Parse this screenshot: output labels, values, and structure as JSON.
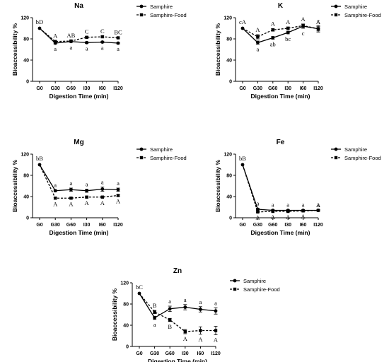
{
  "chart_data": [
    {
      "type": "line",
      "title": "Na",
      "xlabel": "Digestion Time (min)",
      "ylabel": "Bioaccessibility %",
      "categories": [
        "G0",
        "G30",
        "G60",
        "I30",
        "I60",
        "I120"
      ],
      "ylim": [
        0,
        120
      ],
      "yticks": [
        "0",
        "40",
        "80",
        "120"
      ],
      "legend": "right",
      "series": [
        {
          "name": "Samphire",
          "style": "solid",
          "values": [
            100,
            72,
            75,
            73,
            74,
            72
          ],
          "err": [
            0,
            1.5,
            1.5,
            1.5,
            1.5,
            1.5
          ],
          "labels": [
            "bD",
            "a",
            "a",
            "a",
            "a",
            "a"
          ]
        },
        {
          "name": "Samphire-Food",
          "style": "dashed",
          "values": [
            100,
            75,
            76,
            83,
            84,
            82
          ],
          "err": [
            0,
            1.5,
            1.5,
            1.5,
            1.5,
            1.5
          ],
          "labels": [
            "",
            "A",
            "AB",
            "C",
            "C",
            "BC"
          ]
        }
      ]
    },
    {
      "type": "line",
      "title": "K",
      "xlabel": "Digestion Time (min)",
      "ylabel": "Bioaccessibility %",
      "categories": [
        "G0",
        "G30",
        "G60",
        "I30",
        "I60",
        "I120"
      ],
      "ylim": [
        0,
        120
      ],
      "yticks": [
        "0",
        "40",
        "80",
        "120"
      ],
      "legend": "right",
      "series": [
        {
          "name": "Samphire",
          "style": "solid",
          "values": [
            100,
            73,
            82,
            92,
            104,
            99
          ],
          "err": [
            0,
            3,
            2.5,
            2.5,
            4,
            6
          ],
          "labels": [
            "cA",
            "a",
            "ab",
            "bc",
            "c",
            "c"
          ]
        },
        {
          "name": "Samphire-Food",
          "style": "dashed",
          "values": [
            100,
            84,
            97,
            100,
            105,
            99
          ],
          "err": [
            0,
            4,
            2.5,
            2.5,
            3,
            4
          ],
          "labels": [
            "",
            "A",
            "A",
            "A",
            "A",
            "A"
          ]
        }
      ]
    },
    {
      "type": "line",
      "title": "Mg",
      "xlabel": "Digestion Time (min)",
      "ylabel": "Bioaccessibility %",
      "categories": [
        "G0",
        "G30",
        "G60",
        "I30",
        "I60",
        "I120"
      ],
      "ylim": [
        0,
        120
      ],
      "yticks": [
        "0",
        "40",
        "80",
        "120"
      ],
      "legend": "right",
      "series": [
        {
          "name": "Samphire",
          "style": "solid",
          "values": [
            100,
            51,
            53,
            51,
            54,
            53
          ],
          "err": [
            0,
            2,
            3,
            3,
            4,
            3
          ],
          "labels": [
            "bB",
            "a",
            "a",
            "a",
            "a",
            "a"
          ]
        },
        {
          "name": "Samphire-Food",
          "style": "dashed",
          "values": [
            100,
            37,
            37,
            39,
            39,
            42
          ],
          "err": [
            0,
            1.5,
            1.5,
            1.5,
            1.5,
            1.5
          ],
          "labels": [
            "",
            "A",
            "A",
            "A",
            "A",
            "A"
          ]
        }
      ]
    },
    {
      "type": "line",
      "title": "Fe",
      "xlabel": "Digestion Time (min)",
      "ylabel": "Bioaccessibility %",
      "categories": [
        "G0",
        "G30",
        "G60",
        "I30",
        "I60",
        "I120"
      ],
      "ylim": [
        0,
        120
      ],
      "yticks": [
        "0",
        "40",
        "80",
        "120"
      ],
      "legend": "right",
      "series": [
        {
          "name": "Samphire",
          "style": "solid",
          "values": [
            100,
            16,
            14,
            14,
            14,
            14
          ],
          "err": [
            0,
            2,
            1.5,
            1.5,
            1.5,
            1.5
          ],
          "labels": [
            "bB",
            "a",
            "a",
            "a",
            "a",
            "a"
          ]
        },
        {
          "name": "Samphire-Food",
          "style": "dashed",
          "values": [
            100,
            11,
            12,
            12,
            13,
            14
          ],
          "err": [
            0,
            1,
            1,
            1,
            1,
            1
          ],
          "labels": [
            "",
            "A",
            "A",
            "A",
            "A",
            "A"
          ]
        }
      ]
    },
    {
      "type": "line",
      "title": "Zn",
      "xlabel": "Digestion Time (min)",
      "ylabel": "Bioaccessibility %",
      "categories": [
        "G0",
        "G30",
        "G60",
        "I30",
        "I60",
        "I120"
      ],
      "ylim": [
        0,
        120
      ],
      "yticks": [
        "0",
        "40",
        "80",
        "120"
      ],
      "legend": "right",
      "series": [
        {
          "name": "Samphire",
          "style": "solid",
          "values": [
            100,
            54,
            71,
            74,
            70,
            67
          ],
          "err": [
            0,
            3,
            5,
            5,
            5,
            6
          ],
          "labels": [
            "bC",
            "a",
            "a",
            "a",
            "a",
            "a"
          ]
        },
        {
          "name": "Samphire-Food",
          "style": "dashed",
          "values": [
            100,
            65,
            50,
            28,
            30,
            30
          ],
          "err": [
            0,
            3,
            3,
            4,
            7,
            8
          ],
          "labels": [
            "",
            "B",
            "B",
            "A",
            "A",
            "A"
          ]
        }
      ]
    }
  ]
}
